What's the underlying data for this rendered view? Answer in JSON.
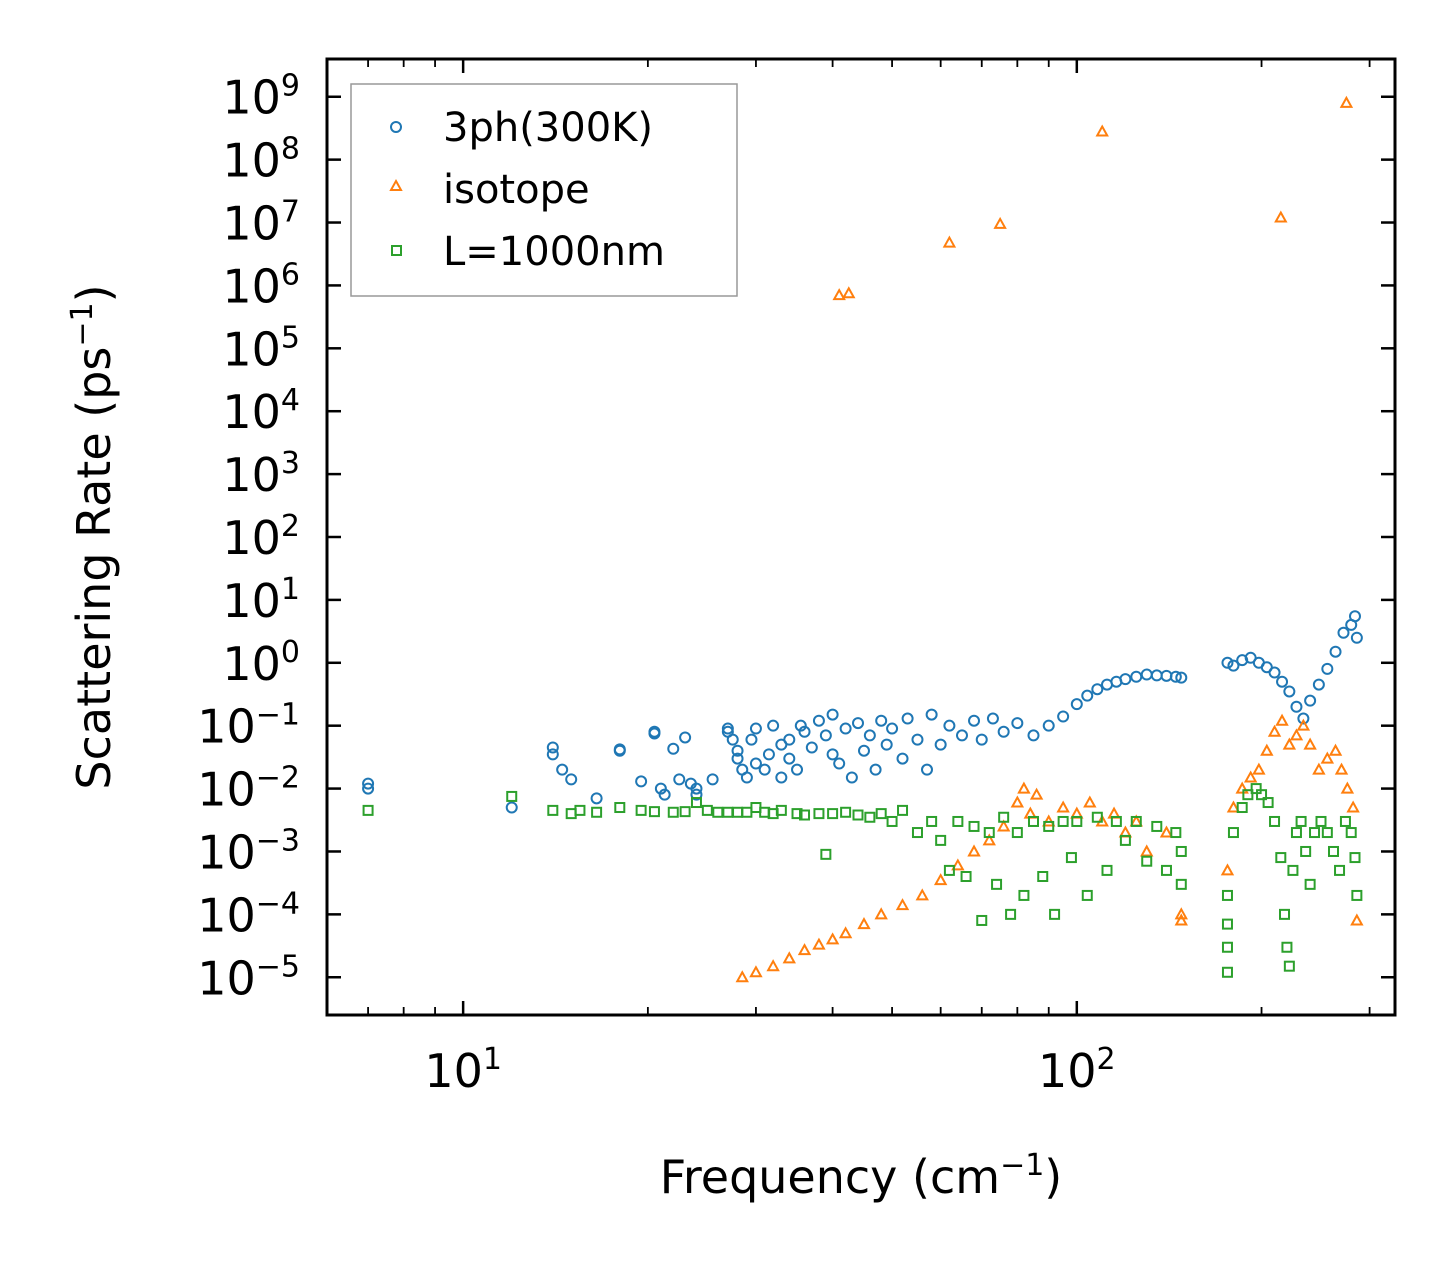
{
  "chart_data": {
    "type": "scatter",
    "xscale": "log",
    "yscale": "log",
    "xlabel": "Frequency (cm",
    "xlabel_sup": "−1",
    "xlabel_end": ")",
    "ylabel": "Scattering Rate (ps",
    "ylabel_sup": "−1",
    "ylabel_end": ")",
    "xlim": [
      6,
      330
    ],
    "ylim_exp": [
      -5.6,
      9.6
    ],
    "x_ticks": [
      {
        "value": 10,
        "base": "10",
        "exp": "1"
      },
      {
        "value": 100,
        "base": "10",
        "exp": "2"
      }
    ],
    "y_ticks": [
      {
        "exp_value": 9,
        "base": "10",
        "exp": "9"
      },
      {
        "exp_value": 8,
        "base": "10",
        "exp": "8"
      },
      {
        "exp_value": 7,
        "base": "10",
        "exp": "7"
      },
      {
        "exp_value": 6,
        "base": "10",
        "exp": "6"
      },
      {
        "exp_value": 5,
        "base": "10",
        "exp": "5"
      },
      {
        "exp_value": 4,
        "base": "10",
        "exp": "4"
      },
      {
        "exp_value": 3,
        "base": "10",
        "exp": "3"
      },
      {
        "exp_value": 2,
        "base": "10",
        "exp": "2"
      },
      {
        "exp_value": 1,
        "base": "10",
        "exp": "1"
      },
      {
        "exp_value": 0,
        "base": "10",
        "exp": "0"
      },
      {
        "exp_value": -1,
        "base": "10",
        "exp": "−1"
      },
      {
        "exp_value": -2,
        "base": "10",
        "exp": "−2"
      },
      {
        "exp_value": -3,
        "base": "10",
        "exp": "−3"
      },
      {
        "exp_value": -4,
        "base": "10",
        "exp": "−4"
      },
      {
        "exp_value": -5,
        "base": "10",
        "exp": "−5"
      }
    ],
    "legend_position": "top-left",
    "series": [
      {
        "name": "3ph(300K)",
        "marker": "circle",
        "color": "#1f77b4",
        "points": [
          [
            7,
            0.012
          ],
          [
            7,
            0.01
          ],
          [
            12,
            0.005
          ],
          [
            14,
            0.045
          ],
          [
            14,
            0.035
          ],
          [
            14.5,
            0.02
          ],
          [
            15,
            0.014
          ],
          [
            16.5,
            0.007
          ],
          [
            18,
            0.04
          ],
          [
            18,
            0.042
          ],
          [
            19.5,
            0.013
          ],
          [
            20.5,
            0.075
          ],
          [
            20.5,
            0.08
          ],
          [
            21,
            0.01
          ],
          [
            21.3,
            0.008
          ],
          [
            22,
            0.043
          ],
          [
            22.5,
            0.014
          ],
          [
            23,
            0.065
          ],
          [
            23.5,
            0.012
          ],
          [
            24,
            0.01
          ],
          [
            24,
            0.008
          ],
          [
            25.5,
            0.014
          ],
          [
            27,
            0.08
          ],
          [
            27,
            0.09
          ],
          [
            27.5,
            0.06
          ],
          [
            28,
            0.04
          ],
          [
            28,
            0.03
          ],
          [
            28.5,
            0.02
          ],
          [
            29,
            0.015
          ],
          [
            29.5,
            0.06
          ],
          [
            30,
            0.09
          ],
          [
            30,
            0.025
          ],
          [
            31,
            0.02
          ],
          [
            31.5,
            0.035
          ],
          [
            32,
            0.1
          ],
          [
            33,
            0.015
          ],
          [
            33,
            0.05
          ],
          [
            34,
            0.06
          ],
          [
            34,
            0.03
          ],
          [
            35,
            0.02
          ],
          [
            35.5,
            0.1
          ],
          [
            36,
            0.08
          ],
          [
            37,
            0.045
          ],
          [
            38,
            0.12
          ],
          [
            39,
            0.07
          ],
          [
            40,
            0.15
          ],
          [
            40,
            0.035
          ],
          [
            41,
            0.025
          ],
          [
            42,
            0.09
          ],
          [
            43,
            0.015
          ],
          [
            44,
            0.11
          ],
          [
            45,
            0.04
          ],
          [
            46,
            0.07
          ],
          [
            47,
            0.02
          ],
          [
            48,
            0.12
          ],
          [
            49,
            0.05
          ],
          [
            50,
            0.09
          ],
          [
            52,
            0.03
          ],
          [
            53,
            0.13
          ],
          [
            55,
            0.06
          ],
          [
            57,
            0.02
          ],
          [
            58,
            0.15
          ],
          [
            60,
            0.05
          ],
          [
            62,
            0.1
          ],
          [
            65,
            0.07
          ],
          [
            68,
            0.12
          ],
          [
            70,
            0.06
          ],
          [
            73,
            0.13
          ],
          [
            76,
            0.08
          ],
          [
            80,
            0.11
          ],
          [
            85,
            0.07
          ],
          [
            90,
            0.1
          ],
          [
            95,
            0.14
          ],
          [
            100,
            0.22
          ],
          [
            104,
            0.3
          ],
          [
            108,
            0.38
          ],
          [
            112,
            0.45
          ],
          [
            116,
            0.5
          ],
          [
            120,
            0.55
          ],
          [
            125,
            0.6
          ],
          [
            130,
            0.65
          ],
          [
            135,
            0.63
          ],
          [
            140,
            0.62
          ],
          [
            145,
            0.6
          ],
          [
            148,
            0.58
          ],
          [
            176,
            1.0
          ],
          [
            180,
            0.9
          ],
          [
            186,
            1.1
          ],
          [
            192,
            1.2
          ],
          [
            198,
            1.0
          ],
          [
            204,
            0.85
          ],
          [
            210,
            0.7
          ],
          [
            216,
            0.5
          ],
          [
            222,
            0.35
          ],
          [
            228,
            0.2
          ],
          [
            234,
            0.13
          ],
          [
            240,
            0.25
          ],
          [
            248,
            0.45
          ],
          [
            256,
            0.8
          ],
          [
            264,
            1.5
          ],
          [
            272,
            3.0
          ],
          [
            280,
            4.0
          ],
          [
            284,
            5.5
          ],
          [
            286,
            2.5
          ]
        ]
      },
      {
        "name": "isotope",
        "marker": "triangle",
        "color": "#ff7f0e",
        "points": [
          [
            41,
            700000
          ],
          [
            42.5,
            750000
          ],
          [
            62,
            4800000
          ],
          [
            75,
            9500000
          ],
          [
            110,
            280000000
          ],
          [
            215,
            12000000
          ],
          [
            275,
            800000000
          ],
          [
            28.5,
            1e-05
          ],
          [
            30,
            1.2e-05
          ],
          [
            32,
            1.5e-05
          ],
          [
            34,
            2e-05
          ],
          [
            36,
            2.7e-05
          ],
          [
            38,
            3.3e-05
          ],
          [
            40,
            4e-05
          ],
          [
            42,
            5e-05
          ],
          [
            45,
            7e-05
          ],
          [
            48,
            0.0001
          ],
          [
            52,
            0.00014
          ],
          [
            56,
            0.0002
          ],
          [
            60,
            0.00035
          ],
          [
            64,
            0.0006
          ],
          [
            68,
            0.001
          ],
          [
            72,
            0.0015
          ],
          [
            76,
            0.0025
          ],
          [
            80,
            0.006
          ],
          [
            82,
            0.01
          ],
          [
            84,
            0.004
          ],
          [
            86,
            0.008
          ],
          [
            90,
            0.003
          ],
          [
            95,
            0.005
          ],
          [
            100,
            0.004
          ],
          [
            105,
            0.006
          ],
          [
            110,
            0.003
          ],
          [
            115,
            0.004
          ],
          [
            120,
            0.002
          ],
          [
            125,
            0.003
          ],
          [
            130,
            0.001
          ],
          [
            140,
            0.002
          ],
          [
            148,
            0.0001
          ],
          [
            148,
            8e-05
          ],
          [
            176,
            0.0005
          ],
          [
            180,
            0.005
          ],
          [
            186,
            0.01
          ],
          [
            192,
            0.015
          ],
          [
            198,
            0.02
          ],
          [
            204,
            0.04
          ],
          [
            210,
            0.08
          ],
          [
            216,
            0.12
          ],
          [
            222,
            0.05
          ],
          [
            228,
            0.07
          ],
          [
            234,
            0.1
          ],
          [
            240,
            0.05
          ],
          [
            248,
            0.02
          ],
          [
            256,
            0.03
          ],
          [
            264,
            0.04
          ],
          [
            270,
            0.02
          ],
          [
            276,
            0.01
          ],
          [
            282,
            0.005
          ],
          [
            286,
            8e-05
          ]
        ]
      },
      {
        "name": "L=1000nm",
        "marker": "square",
        "color": "#2ca02c",
        "points": [
          [
            7,
            0.0045
          ],
          [
            12,
            0.0075
          ],
          [
            14,
            0.0045
          ],
          [
            15,
            0.004
          ],
          [
            15.5,
            0.0045
          ],
          [
            16.5,
            0.0042
          ],
          [
            18,
            0.005
          ],
          [
            19.5,
            0.0045
          ],
          [
            20.5,
            0.0043
          ],
          [
            22,
            0.0042
          ],
          [
            23,
            0.0043
          ],
          [
            24,
            0.006
          ],
          [
            25,
            0.0045
          ],
          [
            26,
            0.0042
          ],
          [
            27,
            0.0042
          ],
          [
            28,
            0.0042
          ],
          [
            29,
            0.0042
          ],
          [
            30,
            0.005
          ],
          [
            31,
            0.0042
          ],
          [
            32,
            0.004
          ],
          [
            33,
            0.0045
          ],
          [
            35,
            0.004
          ],
          [
            36,
            0.0038
          ],
          [
            38,
            0.004
          ],
          [
            39,
            0.0009
          ],
          [
            40,
            0.004
          ],
          [
            42,
            0.0042
          ],
          [
            44,
            0.0038
          ],
          [
            46,
            0.0035
          ],
          [
            48,
            0.004
          ],
          [
            50,
            0.003
          ],
          [
            52,
            0.0045
          ],
          [
            55,
            0.002
          ],
          [
            58,
            0.003
          ],
          [
            60,
            0.0015
          ],
          [
            62,
            0.0005
          ],
          [
            64,
            0.003
          ],
          [
            66,
            0.0004
          ],
          [
            68,
            0.0025
          ],
          [
            70,
            8e-05
          ],
          [
            72,
            0.002
          ],
          [
            74,
            0.0003
          ],
          [
            76,
            0.0035
          ],
          [
            78,
            0.0001
          ],
          [
            80,
            0.002
          ],
          [
            82,
            0.0002
          ],
          [
            85,
            0.003
          ],
          [
            88,
            0.0004
          ],
          [
            90,
            0.0025
          ],
          [
            92,
            0.0001
          ],
          [
            95,
            0.003
          ],
          [
            98,
            0.0008
          ],
          [
            100,
            0.003
          ],
          [
            104,
            0.0002
          ],
          [
            108,
            0.0035
          ],
          [
            112,
            0.0005
          ],
          [
            116,
            0.003
          ],
          [
            120,
            0.0015
          ],
          [
            125,
            0.003
          ],
          [
            130,
            0.0007
          ],
          [
            135,
            0.0025
          ],
          [
            140,
            0.0005
          ],
          [
            145,
            0.002
          ],
          [
            148,
            0.0003
          ],
          [
            148,
            0.001
          ],
          [
            176,
            0.0002
          ],
          [
            176,
            7e-05
          ],
          [
            176,
            1.2e-05
          ],
          [
            176,
            3e-05
          ],
          [
            180,
            0.002
          ],
          [
            186,
            0.005
          ],
          [
            190,
            0.008
          ],
          [
            196,
            0.01
          ],
          [
            200,
            0.008
          ],
          [
            205,
            0.006
          ],
          [
            210,
            0.003
          ],
          [
            215,
            0.0008
          ],
          [
            218,
            0.0001
          ],
          [
            220,
            3e-05
          ],
          [
            222,
            1.5e-05
          ],
          [
            225,
            0.0005
          ],
          [
            228,
            0.002
          ],
          [
            232,
            0.003
          ],
          [
            236,
            0.001
          ],
          [
            240,
            0.0003
          ],
          [
            244,
            0.002
          ],
          [
            250,
            0.003
          ],
          [
            256,
            0.002
          ],
          [
            262,
            0.001
          ],
          [
            268,
            0.0005
          ],
          [
            274,
            0.003
          ],
          [
            280,
            0.002
          ],
          [
            284,
            0.0008
          ],
          [
            286,
            0.0002
          ]
        ]
      }
    ]
  }
}
